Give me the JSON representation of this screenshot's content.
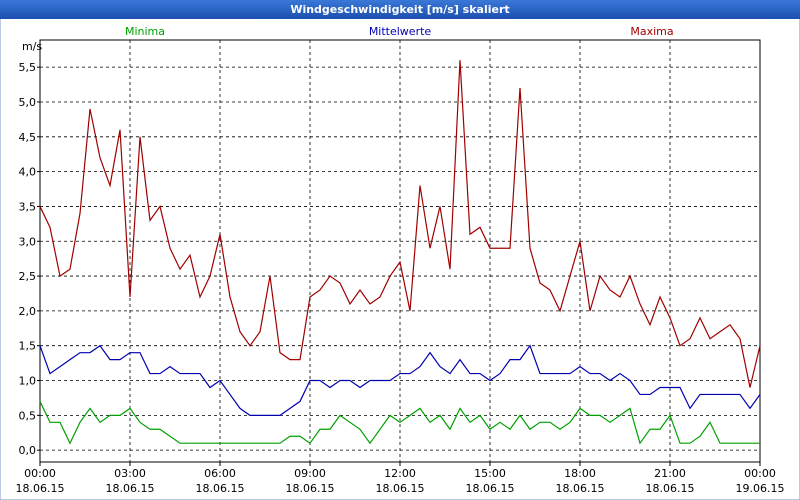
{
  "chart_data": {
    "type": "line",
    "title": "Windgeschwindigkeit [m/s] skaliert",
    "y_unit": "m/s",
    "x": [
      0,
      20,
      40,
      60,
      80,
      100,
      120,
      140,
      160,
      180,
      200,
      220,
      240,
      260,
      280,
      300,
      320,
      340,
      360,
      380,
      400,
      420,
      440,
      460,
      480,
      500,
      520,
      540,
      560,
      580,
      600,
      620,
      640,
      660,
      680,
      700,
      720,
      740,
      760,
      780,
      800,
      820,
      840,
      860,
      880,
      900,
      920,
      940,
      960,
      980,
      1000,
      1020,
      1040,
      1060,
      1080,
      1100,
      1120,
      1140,
      1160,
      1180,
      1200,
      1220,
      1240,
      1260,
      1280,
      1300,
      1320,
      1340,
      1360,
      1380,
      1400,
      1420,
      1440
    ],
    "xlim": [
      0,
      1440
    ],
    "xticks": [
      {
        "value": 0,
        "label": "00:00 18.06.15"
      },
      {
        "value": 180,
        "label": "03:00 18.06.15"
      },
      {
        "value": 360,
        "label": "06:00 18.06.15"
      },
      {
        "value": 540,
        "label": "09:00 18.06.15"
      },
      {
        "value": 720,
        "label": "12:00 18.06.15"
      },
      {
        "value": 900,
        "label": "15:00 18.06.15"
      },
      {
        "value": 1080,
        "label": "18:00 18.06.15"
      },
      {
        "value": 1260,
        "label": "21:00 18.06.15"
      },
      {
        "value": 1440,
        "label": "00:00 19.06.15"
      }
    ],
    "ylim": [
      -0.17,
      5.89
    ],
    "yticks": [
      {
        "value": 0,
        "label": "0,0"
      },
      {
        "value": 0.5,
        "label": "0,5"
      },
      {
        "value": 1,
        "label": "1,0"
      },
      {
        "value": 1.5,
        "label": "1,5"
      },
      {
        "value": 2,
        "label": "2,0"
      },
      {
        "value": 2.5,
        "label": "2,5"
      },
      {
        "value": 3,
        "label": "3,0"
      },
      {
        "value": 3.5,
        "label": "3,5"
      },
      {
        "value": 4,
        "label": "4,0"
      },
      {
        "value": 4.5,
        "label": "4,5"
      },
      {
        "value": 5,
        "label": "5,0"
      },
      {
        "value": 5.5,
        "label": "5,5"
      }
    ],
    "grid": true,
    "series": [
      {
        "name": "Minima",
        "color": "#00a000",
        "values": [
          0.7,
          0.4,
          0.4,
          0.1,
          0.4,
          0.6,
          0.4,
          0.5,
          0.5,
          0.6,
          0.4,
          0.3,
          0.3,
          0.2,
          0.1,
          0.1,
          0.1,
          0.1,
          0.1,
          0.1,
          0.1,
          0.1,
          0.1,
          0.1,
          0.1,
          0.2,
          0.2,
          0.1,
          0.3,
          0.3,
          0.5,
          0.4,
          0.3,
          0.1,
          0.3,
          0.5,
          0.4,
          0.5,
          0.6,
          0.4,
          0.5,
          0.3,
          0.6,
          0.4,
          0.5,
          0.3,
          0.4,
          0.3,
          0.5,
          0.3,
          0.4,
          0.4,
          0.3,
          0.4,
          0.6,
          0.5,
          0.5,
          0.4,
          0.5,
          0.6,
          0.1,
          0.3,
          0.3,
          0.5,
          0.1,
          0.1,
          0.2,
          0.4,
          0.1,
          0.1,
          0.1,
          0.1,
          0.1
        ]
      },
      {
        "name": "Mittelwerte",
        "color": "#0000b0",
        "values": [
          1.5,
          1.1,
          1.2,
          1.3,
          1.4,
          1.4,
          1.5,
          1.3,
          1.3,
          1.4,
          1.4,
          1.1,
          1.1,
          1.2,
          1.1,
          1.1,
          1.1,
          0.9,
          1.0,
          0.8,
          0.6,
          0.5,
          0.5,
          0.5,
          0.5,
          0.6,
          0.7,
          1.0,
          1.0,
          0.9,
          1.0,
          1.0,
          0.9,
          1.0,
          1.0,
          1.0,
          1.1,
          1.1,
          1.2,
          1.4,
          1.2,
          1.1,
          1.3,
          1.1,
          1.1,
          1.0,
          1.1,
          1.3,
          1.3,
          1.5,
          1.1,
          1.1,
          1.1,
          1.1,
          1.2,
          1.1,
          1.1,
          1.0,
          1.1,
          1.0,
          0.8,
          0.8,
          0.9,
          0.9,
          0.9,
          0.6,
          0.8,
          0.8,
          0.8,
          0.8,
          0.8,
          0.6,
          0.8
        ]
      },
      {
        "name": "Maxima",
        "color": "#a00000",
        "values": [
          3.5,
          3.2,
          2.5,
          2.6,
          3.4,
          4.9,
          4.2,
          3.8,
          4.6,
          2.2,
          4.5,
          3.3,
          3.5,
          2.9,
          2.6,
          2.8,
          2.2,
          2.5,
          3.1,
          2.2,
          1.7,
          1.5,
          1.7,
          2.5,
          1.4,
          1.3,
          1.3,
          2.2,
          2.3,
          2.5,
          2.4,
          2.1,
          2.3,
          2.1,
          2.2,
          2.5,
          2.7,
          2.0,
          3.8,
          2.9,
          3.5,
          2.6,
          5.6,
          3.1,
          3.2,
          2.9,
          2.9,
          2.9,
          5.2,
          2.9,
          2.4,
          2.3,
          2.0,
          2.5,
          3.0,
          2.0,
          2.5,
          2.3,
          2.2,
          2.5,
          2.1,
          1.8,
          2.2,
          1.9,
          1.5,
          1.6,
          1.9,
          1.6,
          1.7,
          1.8,
          1.6,
          0.9,
          1.5
        ]
      }
    ]
  }
}
